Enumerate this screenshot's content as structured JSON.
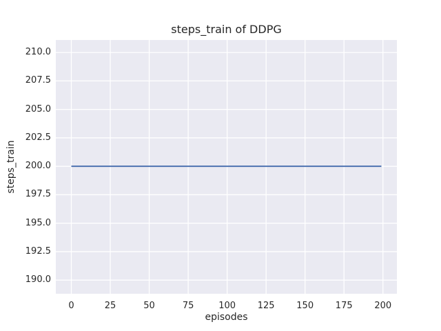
{
  "chart_data": {
    "type": "line",
    "title": "steps_train of DDPG",
    "xlabel": "episodes",
    "ylabel": "steps_train",
    "x_tick_values": [
      0,
      25,
      50,
      75,
      100,
      125,
      150,
      175,
      200
    ],
    "x_tick_labels": [
      "0",
      "25",
      "50",
      "75",
      "100",
      "125",
      "150",
      "175",
      "200"
    ],
    "y_tick_values": [
      190.0,
      192.5,
      195.0,
      197.5,
      200.0,
      202.5,
      205.0,
      207.5,
      210.0
    ],
    "y_tick_labels": [
      "190.0",
      "192.5",
      "195.0",
      "197.5",
      "200.0",
      "202.5",
      "205.0",
      "207.5",
      "210.0"
    ],
    "xlim": [
      -9.95,
      208.95
    ],
    "ylim": [
      188.8,
      211.1
    ],
    "grid": true,
    "legend": "none",
    "series": [
      {
        "name": "steps_train",
        "x": [
          0,
          199
        ],
        "y": [
          200,
          200
        ],
        "constant_value": 200,
        "color": "#4c72b0"
      }
    ],
    "colors": {
      "plot_background": "#eaeaf2",
      "figure_background": "#ffffff",
      "gridline": "#ffffff",
      "text": "#262626"
    }
  }
}
